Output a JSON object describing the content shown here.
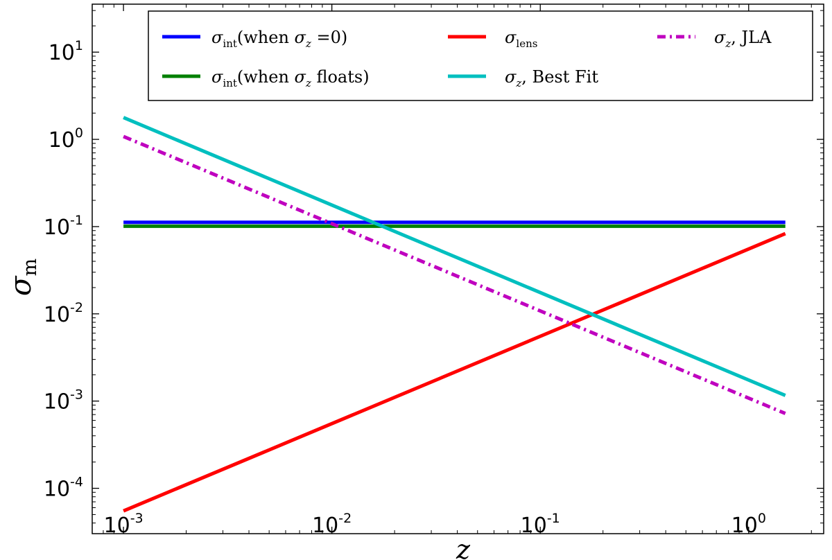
{
  "chart_data": {
    "type": "line",
    "title": "",
    "xlabel": "z",
    "ylabel": "σm",
    "xscale": "log",
    "yscale": "log",
    "xlim_exp": [
      -3.15,
      0.36
    ],
    "ylim_exp": [
      -4.52,
      1.55
    ],
    "x_ticks": [
      {
        "base": "10",
        "exp": "-3",
        "value": 0.001
      },
      {
        "base": "10",
        "exp": "-2",
        "value": 0.01
      },
      {
        "base": "10",
        "exp": "-1",
        "value": 0.1
      },
      {
        "base": "10",
        "exp": "0",
        "value": 1
      }
    ],
    "y_ticks": [
      {
        "base": "10",
        "exp": "1",
        "value": 10
      },
      {
        "base": "10",
        "exp": "0",
        "value": 1
      },
      {
        "base": "10",
        "exp": "-1",
        "value": 0.1
      },
      {
        "base": "10",
        "exp": "-2",
        "value": 0.01
      },
      {
        "base": "10",
        "exp": "-3",
        "value": 0.001
      },
      {
        "base": "10",
        "exp": "-4",
        "value": 0.0001
      }
    ],
    "legend_position": "top",
    "series": [
      {
        "key": "int0",
        "name": "σint(when σz =0)",
        "color": "#0000ff",
        "dash": "solid",
        "x": [
          0.001,
          1.5
        ],
        "y": [
          0.112,
          0.112
        ]
      },
      {
        "key": "intf",
        "name": "σint(when σz floats)",
        "color": "#008000",
        "dash": "solid",
        "x": [
          0.001,
          1.5
        ],
        "y": [
          0.101,
          0.101
        ]
      },
      {
        "key": "lens",
        "name": "σlens",
        "color": "#ff0000",
        "dash": "solid",
        "x": [
          0.001,
          1.5
        ],
        "y": [
          5.5e-05,
          0.083
        ]
      },
      {
        "key": "best",
        "name": "σz, Best Fit",
        "color": "#00bfbf",
        "dash": "solid",
        "x": [
          0.001,
          1.5
        ],
        "y": [
          1.78,
          0.00116
        ]
      },
      {
        "key": "jla",
        "name": "σz, JLA",
        "color": "#bf00bf",
        "dash": "dashdot",
        "x": [
          0.001,
          1.5
        ],
        "y": [
          1.08,
          0.00072
        ]
      }
    ],
    "legend": {
      "int0": {
        "sigma": "σ",
        "sub": "int",
        "text": "(when ",
        "sigma2": "σ",
        "zsub": "z",
        "tail": " =0)"
      },
      "intf": {
        "sigma": "σ",
        "sub": "int",
        "text": "(when ",
        "sigma2": "σ",
        "zsub": "z",
        "tail": " floats)"
      },
      "lens": {
        "sigma": "σ",
        "sub": "lens"
      },
      "best": {
        "sigma": "σ",
        "zsub": "z",
        "tail": ", Best Fit"
      },
      "jla": {
        "sigma": "σ",
        "zsub": "z",
        "tail": ", JLA"
      }
    },
    "axis_labels": {
      "x": "z",
      "y_sigma": "σ",
      "y_sub": "m"
    }
  }
}
